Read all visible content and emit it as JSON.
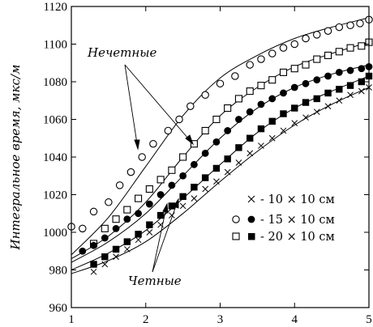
{
  "chart_data": {
    "type": "scatter",
    "title": "",
    "xlabel": "",
    "ylabel": "Интегральное время, мкс/м",
    "xlim": [
      1,
      5
    ],
    "ylim": [
      960,
      1120
    ],
    "x_ticks": [
      1,
      2,
      3,
      4,
      5
    ],
    "y_ticks": [
      960,
      980,
      1000,
      1020,
      1040,
      1060,
      1080,
      1100,
      1120
    ],
    "grid": false,
    "legend_position": "lower-right",
    "legend": [
      {
        "markers": "×",
        "text": "- 10 × 10 см"
      },
      {
        "markers": "○ ●",
        "text": "- 15 × 10 см"
      },
      {
        "markers": "□ ■",
        "text": "- 20 × 10 см"
      }
    ],
    "annotations": [
      {
        "text": "Нечетные"
      },
      {
        "text": "Четные"
      }
    ],
    "series": [
      {
        "marker": "circle-open",
        "x": [
          1.0,
          1.15,
          1.3,
          1.5,
          1.65,
          1.8,
          1.95,
          2.1,
          2.3,
          2.45,
          2.6,
          2.8,
          3.0,
          3.2,
          3.4,
          3.55,
          3.7,
          3.85,
          4.0,
          4.15,
          4.3,
          4.45,
          4.6,
          4.75,
          4.88,
          5.0
        ],
        "y": [
          1003,
          1002,
          1011,
          1016,
          1025,
          1032,
          1040,
          1047,
          1054,
          1060,
          1067,
          1073,
          1079,
          1083,
          1089,
          1092,
          1095,
          1098,
          1100,
          1103,
          1105,
          1107,
          1109,
          1110,
          1111,
          1113
        ]
      },
      {
        "marker": "square-open",
        "x": [
          1.3,
          1.45,
          1.6,
          1.75,
          1.9,
          2.05,
          2.2,
          2.35,
          2.5,
          2.65,
          2.8,
          2.95,
          3.1,
          3.25,
          3.4,
          3.55,
          3.7,
          3.85,
          4.0,
          4.15,
          4.3,
          4.45,
          4.6,
          4.75,
          4.9,
          5.0
        ],
        "y": [
          994,
          1002,
          1007,
          1012,
          1018,
          1023,
          1028,
          1033,
          1040,
          1047,
          1054,
          1060,
          1066,
          1071,
          1075,
          1078,
          1081,
          1085,
          1087,
          1089,
          1092,
          1094,
          1096,
          1098,
          1099,
          1101
        ]
      },
      {
        "marker": "circle-filled",
        "x": [
          1.15,
          1.3,
          1.45,
          1.6,
          1.75,
          1.9,
          2.05,
          2.2,
          2.35,
          2.5,
          2.65,
          2.8,
          2.95,
          3.1,
          3.25,
          3.4,
          3.55,
          3.7,
          3.85,
          4.0,
          4.15,
          4.3,
          4.45,
          4.6,
          4.75,
          4.9,
          5.0
        ],
        "y": [
          990,
          993,
          997,
          1002,
          1007,
          1010,
          1015,
          1020,
          1025,
          1030,
          1036,
          1042,
          1048,
          1054,
          1060,
          1064,
          1068,
          1071,
          1074,
          1077,
          1079,
          1081,
          1083,
          1085,
          1086,
          1087,
          1088
        ]
      },
      {
        "marker": "square-filled",
        "x": [
          1.3,
          1.45,
          1.6,
          1.75,
          1.9,
          2.05,
          2.2,
          2.35,
          2.5,
          2.65,
          2.8,
          2.95,
          3.1,
          3.25,
          3.4,
          3.55,
          3.7,
          3.85,
          4.0,
          4.15,
          4.3,
          4.45,
          4.6,
          4.75,
          4.9,
          5.0
        ],
        "y": [
          983,
          987,
          991,
          995,
          999,
          1004,
          1009,
          1014,
          1019,
          1024,
          1029,
          1034,
          1039,
          1045,
          1050,
          1055,
          1059,
          1063,
          1066,
          1069,
          1071,
          1074,
          1076,
          1078,
          1080,
          1083
        ]
      },
      {
        "marker": "cross",
        "x": [
          1.3,
          1.45,
          1.6,
          1.75,
          1.9,
          2.05,
          2.2,
          2.35,
          2.5,
          2.65,
          2.8,
          2.95,
          3.1,
          3.25,
          3.4,
          3.55,
          3.7,
          3.85,
          4.0,
          4.15,
          4.3,
          4.45,
          4.6,
          4.75,
          4.9,
          5.0
        ],
        "y": [
          979,
          983,
          987,
          991,
          996,
          1000,
          1004,
          1009,
          1014,
          1018,
          1023,
          1027,
          1032,
          1037,
          1042,
          1046,
          1050,
          1054,
          1058,
          1061,
          1064,
          1067,
          1070,
          1073,
          1075,
          1077
        ]
      }
    ],
    "fit_curves": [
      {
        "x": [
          1.0,
          1.5,
          2.0,
          2.5,
          3.0,
          3.5,
          4.0,
          4.5,
          5.0
        ],
        "y": [
          988,
          1008,
          1035,
          1062,
          1082,
          1094,
          1103,
          1109,
          1114
        ]
      },
      {
        "x": [
          1.0,
          1.5,
          2.0,
          2.5,
          3.0,
          3.5,
          4.0,
          4.5,
          5.0
        ],
        "y": [
          986,
          998,
          1016,
          1040,
          1062,
          1077,
          1088,
          1095,
          1101
        ]
      },
      {
        "x": [
          1.0,
          1.5,
          2.0,
          2.5,
          3.0,
          3.5,
          4.0,
          4.5,
          5.0
        ],
        "y": [
          984,
          995,
          1010,
          1030,
          1050,
          1066,
          1077,
          1084,
          1089
        ]
      },
      {
        "x": [
          1.0,
          1.5,
          2.0,
          2.5,
          3.0,
          3.5,
          4.0,
          4.5,
          5.0
        ],
        "y": [
          980,
          989,
          1001,
          1018,
          1036,
          1053,
          1066,
          1075,
          1083
        ]
      },
      {
        "x": [
          1.0,
          1.5,
          2.0,
          2.5,
          3.0,
          3.5,
          4.0,
          4.5,
          5.0
        ],
        "y": [
          978,
          985,
          995,
          1010,
          1027,
          1043,
          1057,
          1068,
          1077
        ]
      }
    ]
  }
}
